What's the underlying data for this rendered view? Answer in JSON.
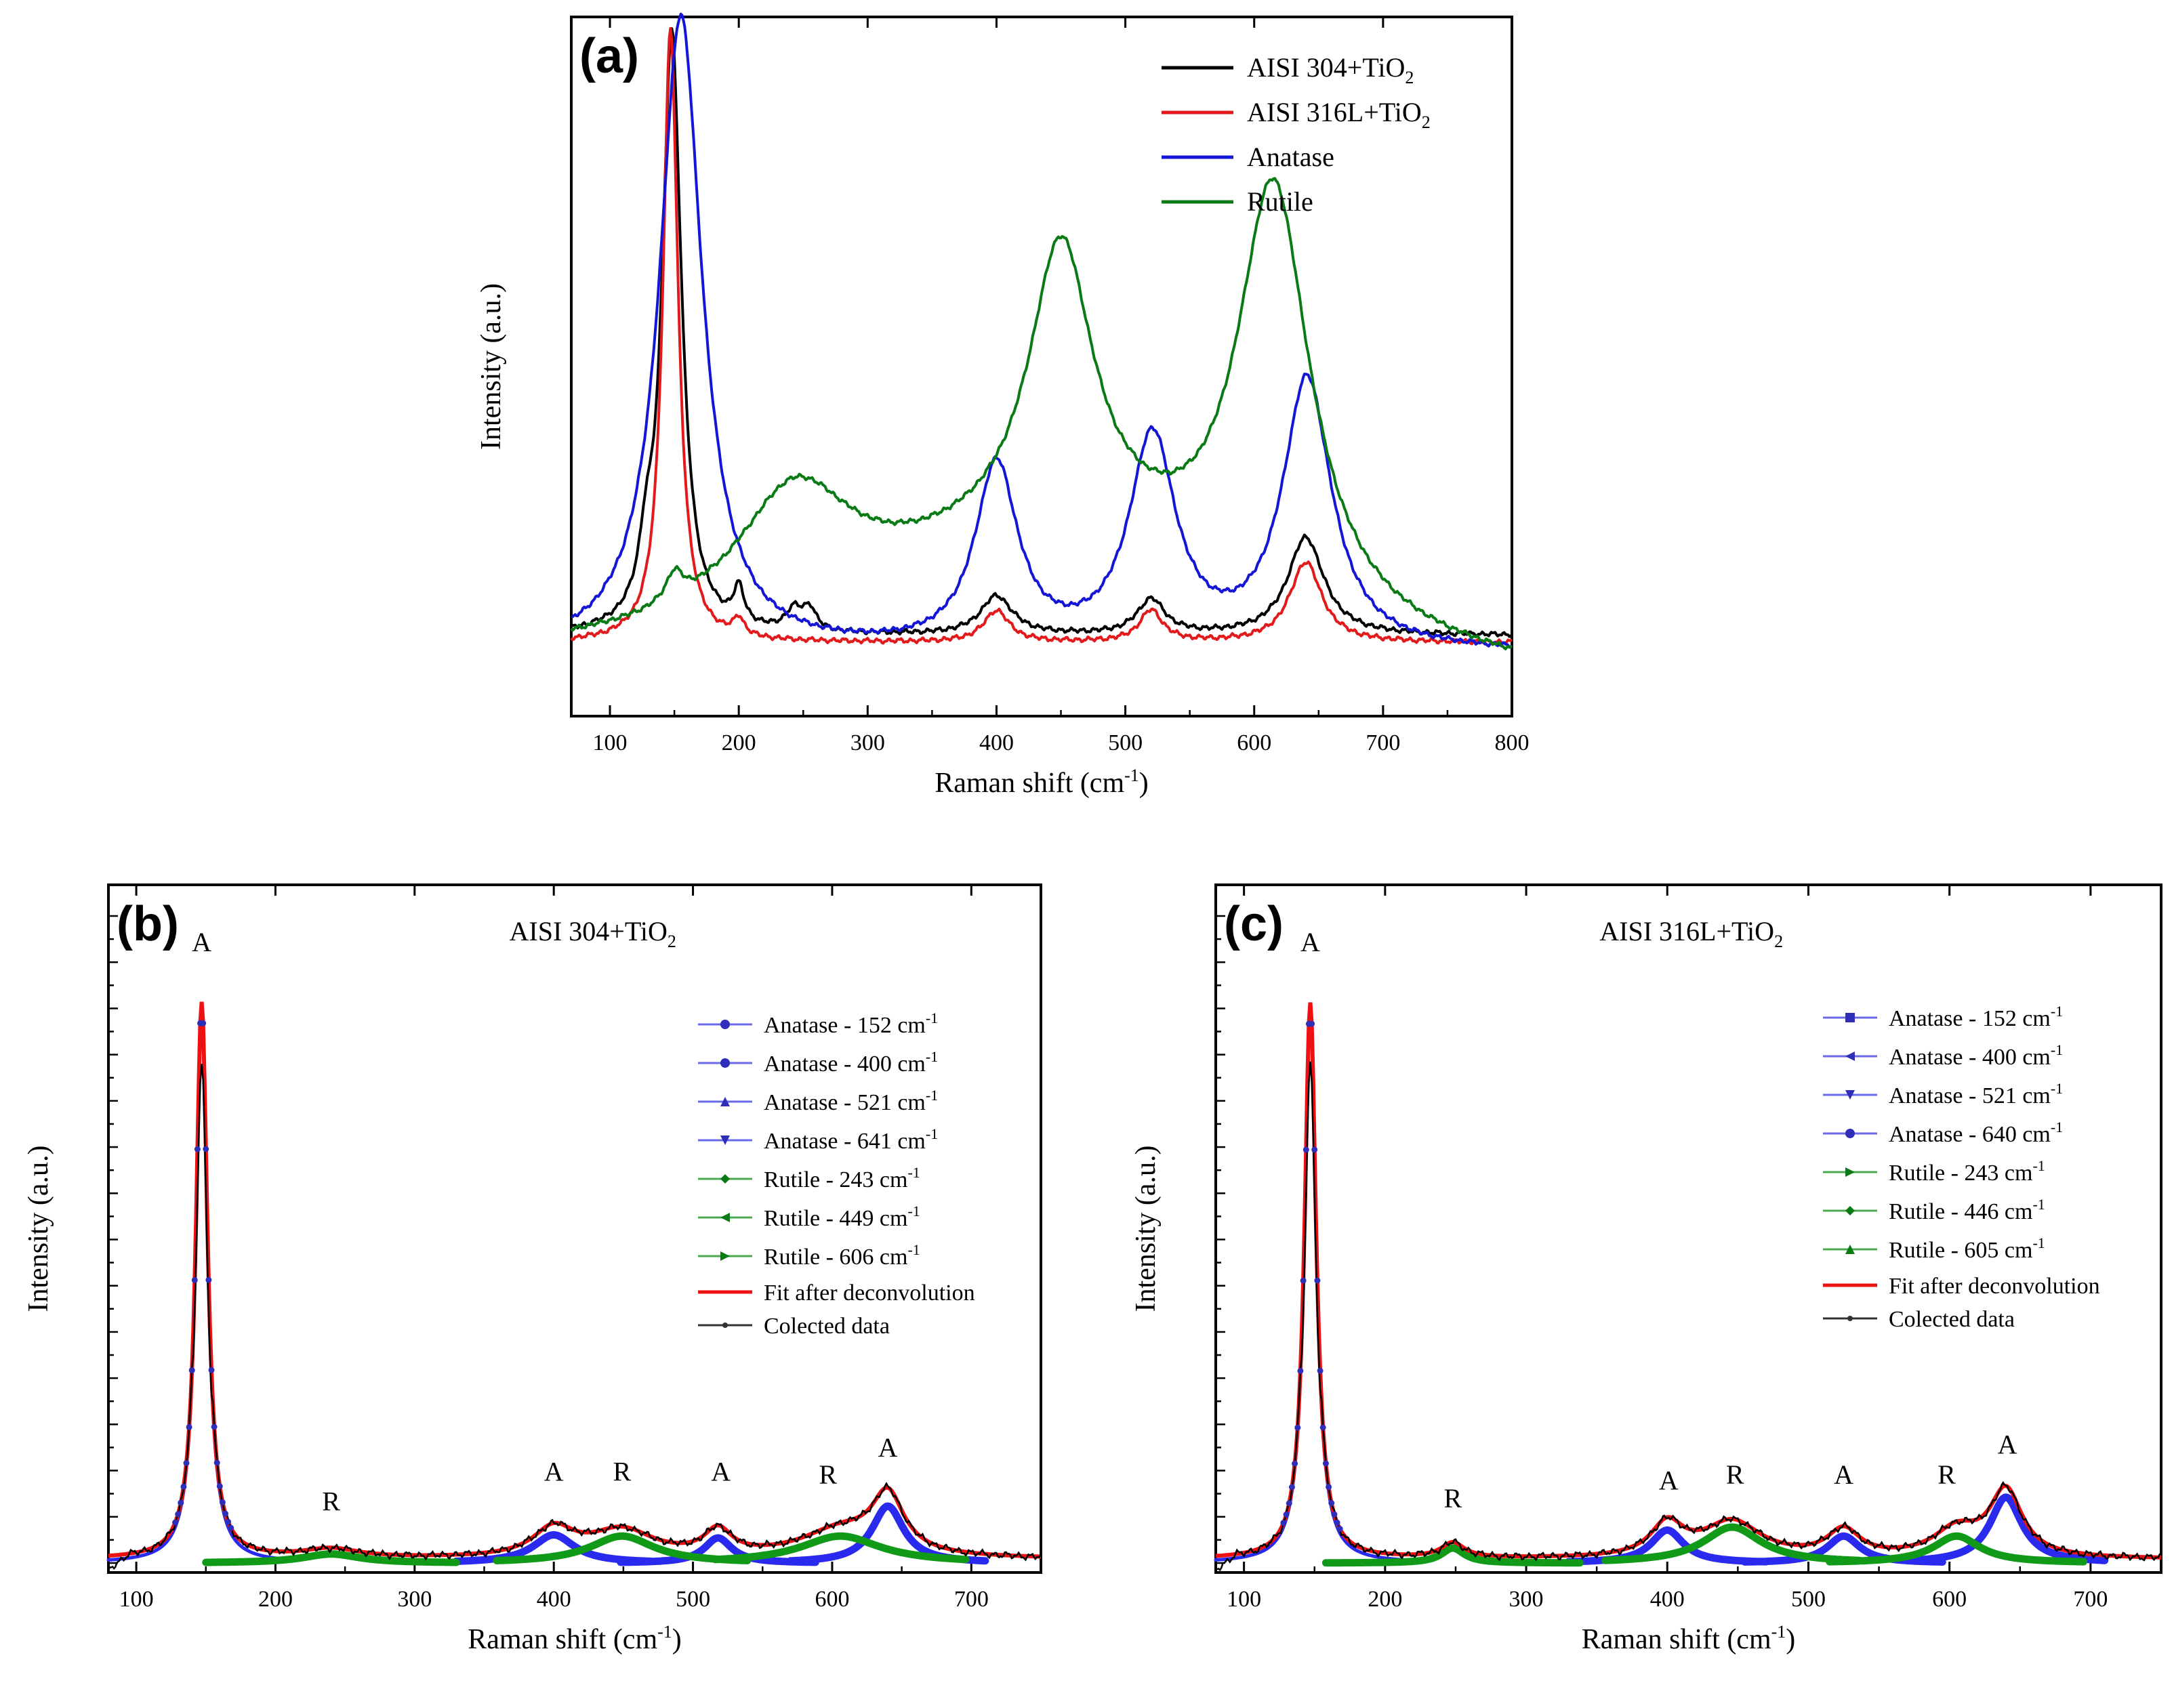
{
  "colors": {
    "black": "#000000",
    "red": "#e31a1c",
    "blue": "#1515d6",
    "green": "#0a7a14",
    "fit_red": "#ee1111",
    "comp_blue": "#2a2aee",
    "comp_green": "#109a18",
    "dot_blue": "#2e2eb8"
  },
  "chart_data": [
    {
      "id": "a",
      "type": "line",
      "panel_label": "(a)",
      "title": "",
      "xlabel": "Raman shift (cm",
      "xlabel_sup": "-1",
      "xlabel_end": ")",
      "ylabel": "Intensity (a.u.)",
      "xlim": [
        70,
        800
      ],
      "ylim": [
        0,
        1
      ],
      "xticks": [
        100,
        200,
        300,
        400,
        500,
        600,
        700,
        800
      ],
      "legend_position": "top-right",
      "series": [
        {
          "name": "AISI 304+TiO",
          "sub": "2",
          "color_key": "black",
          "baseline": 0.115,
          "peaks": [
            [
              148,
              0.86,
              9
            ],
            [
              128,
              0.07,
              6
            ],
            [
              200,
              0.05,
              5
            ],
            [
              243,
              0.03,
              8
            ],
            [
              255,
              0.03,
              6
            ],
            [
              400,
              0.055,
              15
            ],
            [
              520,
              0.05,
              13
            ],
            [
              640,
              0.14,
              17
            ]
          ]
        },
        {
          "name": "AISI 316L+TiO",
          "sub": "2",
          "color_key": "red",
          "baseline": 0.105,
          "peaks": [
            [
              147,
              0.88,
              7
            ],
            [
              200,
              0.025,
              5
            ],
            [
              400,
              0.045,
              12
            ],
            [
              520,
              0.045,
              11
            ],
            [
              640,
              0.115,
              15
            ]
          ]
        },
        {
          "name": "Anatase",
          "sub": "",
          "color_key": "blue",
          "baseline": 0.09,
          "peaks": [
            [
              155,
              0.91,
              20
            ],
            [
              400,
              0.26,
              20
            ],
            [
              521,
              0.3,
              22
            ],
            [
              641,
              0.385,
              23
            ]
          ]
        },
        {
          "name": "Rutile",
          "sub": "",
          "color_key": "green",
          "baseline": 0.06,
          "peaks": [
            [
              150,
              0.04,
              8
            ],
            [
              243,
              0.18,
              55
            ],
            [
              450,
              0.41,
              30
            ],
            [
              615,
              0.6,
              34
            ],
            [
              450,
              0.2,
              200
            ]
          ]
        }
      ]
    },
    {
      "id": "b",
      "type": "line",
      "panel_label": "(b)",
      "title": "AISI 304+TiO",
      "title_sub": "2",
      "xlabel": "Raman shift (cm",
      "xlabel_sup": "-1",
      "xlabel_end": ")",
      "ylabel": "Intensity (a.u.)",
      "xlim": [
        80,
        750
      ],
      "ylim": [
        0,
        1
      ],
      "xticks": [
        100,
        200,
        300,
        400,
        500,
        600,
        700
      ],
      "legend_position": "right",
      "peak_labels": [
        {
          "text": "A",
          "x": 147,
          "y": 1.0
        },
        {
          "text": "R",
          "x": 240,
          "y": 0.065
        },
        {
          "text": "A",
          "x": 400,
          "y": 0.115
        },
        {
          "text": "R",
          "x": 449,
          "y": 0.115
        },
        {
          "text": "A",
          "x": 520,
          "y": 0.115
        },
        {
          "text": "R",
          "x": 597,
          "y": 0.11
        },
        {
          "text": "A",
          "x": 640,
          "y": 0.155
        }
      ],
      "components": [
        {
          "name": "Anatase - 152 cm",
          "sup": "-1",
          "kind": "anatase",
          "marker": "circle",
          "center": 147,
          "height": 0.93,
          "width": 5
        },
        {
          "name": "Anatase - 400 cm",
          "sup": "-1",
          "kind": "anatase",
          "marker": "circle",
          "center": 400,
          "height": 0.047,
          "width": 18
        },
        {
          "name": "Anatase - 521 cm",
          "sup": "-1",
          "kind": "anatase",
          "marker": "triangle-up",
          "center": 518,
          "height": 0.042,
          "width": 12
        },
        {
          "name": "Anatase - 641 cm",
          "sup": "-1",
          "kind": "anatase",
          "marker": "triangle-down",
          "center": 640,
          "height": 0.095,
          "width": 14
        },
        {
          "name": "Rutile - 243 cm",
          "sup": "-1",
          "kind": "rutile",
          "marker": "diamond",
          "center": 240,
          "height": 0.015,
          "width": 25
        },
        {
          "name": "Rutile - 449 cm",
          "sup": "-1",
          "kind": "rutile",
          "marker": "triangle-left",
          "center": 449,
          "height": 0.045,
          "width": 28
        },
        {
          "name": "Rutile - 606 cm",
          "sup": "-1",
          "kind": "rutile",
          "marker": "triangle-right",
          "center": 606,
          "height": 0.045,
          "width": 35
        }
      ],
      "fit": {
        "name": "Fit after deconvolution",
        "baseline": 0.006
      },
      "collected": {
        "name": "Colected data",
        "baseline": 0.006
      }
    },
    {
      "id": "c",
      "type": "line",
      "panel_label": "(c)",
      "title": "AISI 316L+TiO",
      "title_sub": "2",
      "xlabel": "Raman shift (cm",
      "xlabel_sup": "-1",
      "xlabel_end": ")",
      "ylabel": "Intensity (a.u.)",
      "xlim": [
        80,
        750
      ],
      "ylim": [
        0,
        1
      ],
      "xticks": [
        100,
        200,
        300,
        400,
        500,
        600,
        700
      ],
      "legend_position": "right",
      "peak_labels": [
        {
          "text": "A",
          "x": 147,
          "y": 1.0
        },
        {
          "text": "R",
          "x": 248,
          "y": 0.07
        },
        {
          "text": "A",
          "x": 401,
          "y": 0.1
        },
        {
          "text": "R",
          "x": 448,
          "y": 0.11
        },
        {
          "text": "A",
          "x": 525,
          "y": 0.11
        },
        {
          "text": "R",
          "x": 598,
          "y": 0.11
        },
        {
          "text": "A",
          "x": 641,
          "y": 0.16
        }
      ],
      "components": [
        {
          "name": "Anatase - 152 cm",
          "sup": "-1",
          "kind": "anatase",
          "marker": "square",
          "center": 147,
          "height": 0.93,
          "width": 5
        },
        {
          "name": "Anatase - 400 cm",
          "sup": "-1",
          "kind": "anatase",
          "marker": "triangle-left",
          "center": 400,
          "height": 0.055,
          "width": 14
        },
        {
          "name": "Anatase - 521 cm",
          "sup": "-1",
          "kind": "anatase",
          "marker": "triangle-down",
          "center": 525,
          "height": 0.045,
          "width": 14
        },
        {
          "name": "Anatase - 640 cm",
          "sup": "-1",
          "kind": "anatase",
          "marker": "circle",
          "center": 640,
          "height": 0.11,
          "width": 14
        },
        {
          "name": "Rutile - 243 cm",
          "sup": "-1",
          "kind": "rutile",
          "marker": "triangle-right",
          "center": 248,
          "height": 0.025,
          "width": 10
        },
        {
          "name": "Rutile - 446 cm",
          "sup": "-1",
          "kind": "rutile",
          "marker": "diamond",
          "center": 446,
          "height": 0.06,
          "width": 25
        },
        {
          "name": "Rutile - 605 cm",
          "sup": "-1",
          "kind": "rutile",
          "marker": "triangle-up",
          "center": 605,
          "height": 0.045,
          "width": 20
        }
      ],
      "fit": {
        "name": "Fit after deconvolution",
        "baseline": 0.006
      },
      "collected": {
        "name": "Colected data",
        "baseline": 0.006
      }
    }
  ]
}
